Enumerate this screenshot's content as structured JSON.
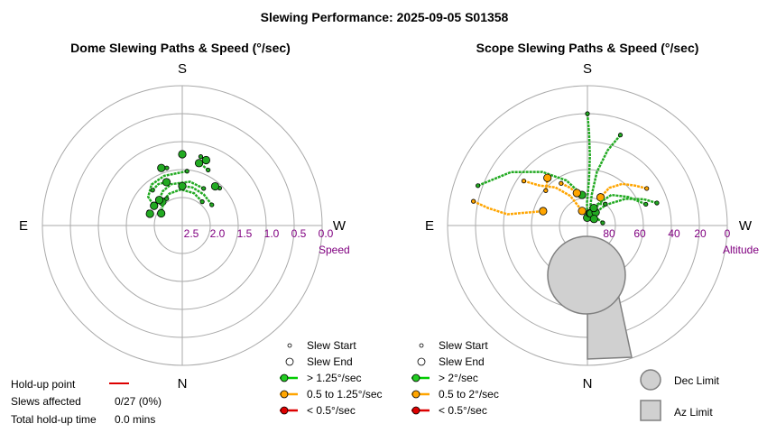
{
  "title": "Slewing Performance: 2025-09-05 S01358",
  "dome": {
    "title": "Dome Slewing Paths & Speed (°/sec)",
    "compass": {
      "S": "S",
      "N": "N",
      "E": "E",
      "W": "W"
    },
    "radial_ticks": [
      "2.5",
      "2.0",
      "1.5",
      "1.0",
      "0.5",
      "0.0"
    ],
    "radial_label": "Speed",
    "legend": [
      {
        "label": "Slew Start",
        "kind": "small",
        "color": "#ffffff"
      },
      {
        "label": "Slew End",
        "kind": "big",
        "color": "#ffffff"
      },
      {
        "label": "> 1.25°/sec",
        "kind": "line",
        "color": "#00cc00"
      },
      {
        "label": "0.5 to 1.25°/sec",
        "kind": "line",
        "color": "#ffa500"
      },
      {
        "label": "< 0.5°/sec",
        "kind": "line",
        "color": "#dd0000"
      }
    ]
  },
  "scope": {
    "title": "Scope Slewing Paths & Speed (°/sec)",
    "compass": {
      "S": "S",
      "N": "N",
      "E": "E",
      "W": "W"
    },
    "radial_ticks": [
      "80",
      "60",
      "40",
      "20",
      "0"
    ],
    "radial_label": "Altitude",
    "legend": [
      {
        "label": "Slew Start",
        "kind": "small",
        "color": "#ffffff"
      },
      {
        "label": "Slew End",
        "kind": "big",
        "color": "#ffffff"
      },
      {
        "label": "> 2°/sec",
        "kind": "line",
        "color": "#00cc00"
      },
      {
        "label": "0.5 to 2°/sec",
        "kind": "line",
        "color": "#ffa500"
      },
      {
        "label": "< 0.5°/sec",
        "kind": "line",
        "color": "#dd0000"
      }
    ],
    "limits": [
      {
        "label": "Dec Limit",
        "shape": "circle"
      },
      {
        "label": "Az Limit",
        "shape": "square"
      }
    ]
  },
  "holdup": {
    "rows": [
      {
        "label": "Hold-up point",
        "value": ""
      },
      {
        "label": "Slews affected",
        "value": "0/27 (0%)"
      },
      {
        "label": "Total hold-up time",
        "value": "0.0 mins"
      }
    ],
    "line_color": "#dd0000"
  },
  "colors": {
    "fast": "#22aa22",
    "medium": "#ffa500",
    "slow": "#dd0000",
    "limit_fill": "#d0d0d0",
    "axis_label": "#800080"
  },
  "chart_data": [
    {
      "type": "scatter",
      "title": "Dome Slewing Paths & Speed (°/sec)",
      "radial_axis": "Speed (°/sec), 0.0 at rim",
      "rlim": [
        0.0,
        2.5
      ],
      "slews": [
        {
          "speed_class": "fast",
          "points": [
            [
              185,
              1.5
            ],
            [
              160,
              1.55
            ],
            [
              143,
              1.6
            ],
            [
              130,
              1.8
            ],
            [
              125,
              2.1
            ]
          ]
        },
        {
          "speed_class": "fast",
          "points": [
            [
              220,
              2.2
            ],
            [
              200,
              2.1
            ],
            [
              178,
              2.05
            ],
            [
              158,
              2.1
            ],
            [
              140,
              2.2
            ]
          ]
        },
        {
          "speed_class": "fast",
          "points": [
            [
              210,
              1.85
            ],
            [
              190,
              1.8
            ],
            [
              165,
              1.85
            ],
            [
              150,
              1.95
            ],
            [
              138,
              2.1
            ]
          ]
        },
        {
          "speed_class": "fast",
          "points": [
            [
              235,
              2.05
            ],
            [
              215,
              2.0
            ],
            [
              195,
              1.95
            ],
            [
              180,
              1.95
            ]
          ]
        },
        {
          "speed_class": "fast",
          "points": [
            [
              150,
              2.2
            ],
            [
              135,
              2.3
            ],
            [
              120,
              2.4
            ]
          ]
        },
        {
          "speed_class": "fast",
          "points": [
            [
              140,
              1.75
            ],
            [
              150,
              1.7
            ],
            [
              160,
              1.75
            ]
          ]
        },
        {
          "speed_class": "fast",
          "points": [
            [
              205,
              1.3
            ],
            [
              200,
              1.25
            ],
            [
              195,
              1.2
            ]
          ]
        },
        {
          "speed_class": "fast",
          "points": [
            [
              165,
              1.35
            ],
            [
              160,
              1.3
            ]
          ]
        },
        {
          "speed_class": "fast",
          "points": [
            [
              225,
              1.55
            ],
            [
              220,
              1.6
            ]
          ]
        },
        {
          "speed_class": "fast",
          "points": [
            [
              180,
              1.05
            ],
            [
              180,
              1.0
            ]
          ]
        },
        {
          "speed_class": "fast",
          "points": [
            [
              195,
              1.0
            ],
            [
              200,
              1.05
            ]
          ]
        },
        {
          "speed_class": "fast",
          "points": [
            [
              112,
              2.05
            ],
            [
              110,
              2.1
            ]
          ]
        }
      ]
    },
    {
      "type": "scatter",
      "title": "Scope Slewing Paths & Speed (°/sec)",
      "radial_axis": "Altitude (°), 90 at centre, 0 at rim",
      "rlim": [
        0,
        90
      ],
      "slews": [
        {
          "speed_class": "fast",
          "points": [
            [
              180,
              18
            ],
            [
              181,
              30
            ],
            [
              182,
              45
            ],
            [
              182,
              60
            ],
            [
              179,
              75
            ],
            [
              178,
              85
            ]
          ]
        },
        {
          "speed_class": "fast",
          "points": [
            [
              200,
              28
            ],
            [
              195,
              40
            ],
            [
              190,
              55
            ],
            [
              188,
              70
            ],
            [
              190,
              82
            ]
          ]
        },
        {
          "speed_class": "medium",
          "points": [
            [
              125,
              40
            ],
            [
              130,
              50
            ],
            [
              140,
              58
            ],
            [
              150,
              68
            ],
            [
              160,
              80
            ]
          ]
        },
        {
          "speed_class": "medium",
          "points": [
            [
              238,
              45
            ],
            [
              230,
              50
            ],
            [
              220,
              55
            ],
            [
              210,
              62
            ],
            [
              205,
              70
            ]
          ]
        },
        {
          "speed_class": "fast",
          "points": [
            [
              250,
              50
            ],
            [
              235,
              58
            ],
            [
              218,
              65
            ],
            [
              205,
              75
            ],
            [
              195,
              82
            ]
          ]
        },
        {
          "speed_class": "fast",
          "points": [
            [
              110,
              15
            ],
            [
              125,
              30
            ],
            [
              140,
              45
            ],
            [
              155,
              58
            ],
            [
              170,
              70
            ]
          ]
        },
        {
          "speed_class": "medium",
          "points": [
            [
              102,
              15
            ],
            [
              100,
              25
            ],
            [
              98,
              38
            ],
            [
              102,
              50
            ],
            [
              108,
              60
            ]
          ]
        },
        {
          "speed_class": "fast",
          "points": [
            [
              252,
              43
            ],
            [
              245,
              50
            ],
            [
              235,
              60
            ],
            [
              222,
              72
            ],
            [
              212,
              80
            ]
          ]
        },
        {
          "speed_class": "medium",
          "points": [
            [
              148,
              58
            ],
            [
              155,
              63
            ],
            [
              162,
              68
            ]
          ]
        },
        {
          "speed_class": "fast",
          "points": [
            [
              220,
              72
            ],
            [
              210,
              74
            ],
            [
              200,
              78
            ]
          ]
        },
        {
          "speed_class": "medium",
          "points": [
            [
              130,
              55
            ],
            [
              135,
              53
            ],
            [
              140,
              50
            ]
          ]
        },
        {
          "speed_class": "fast",
          "points": [
            [
              260,
              80
            ],
            [
              240,
              82
            ],
            [
              225,
              84
            ]
          ]
        }
      ]
    }
  ]
}
